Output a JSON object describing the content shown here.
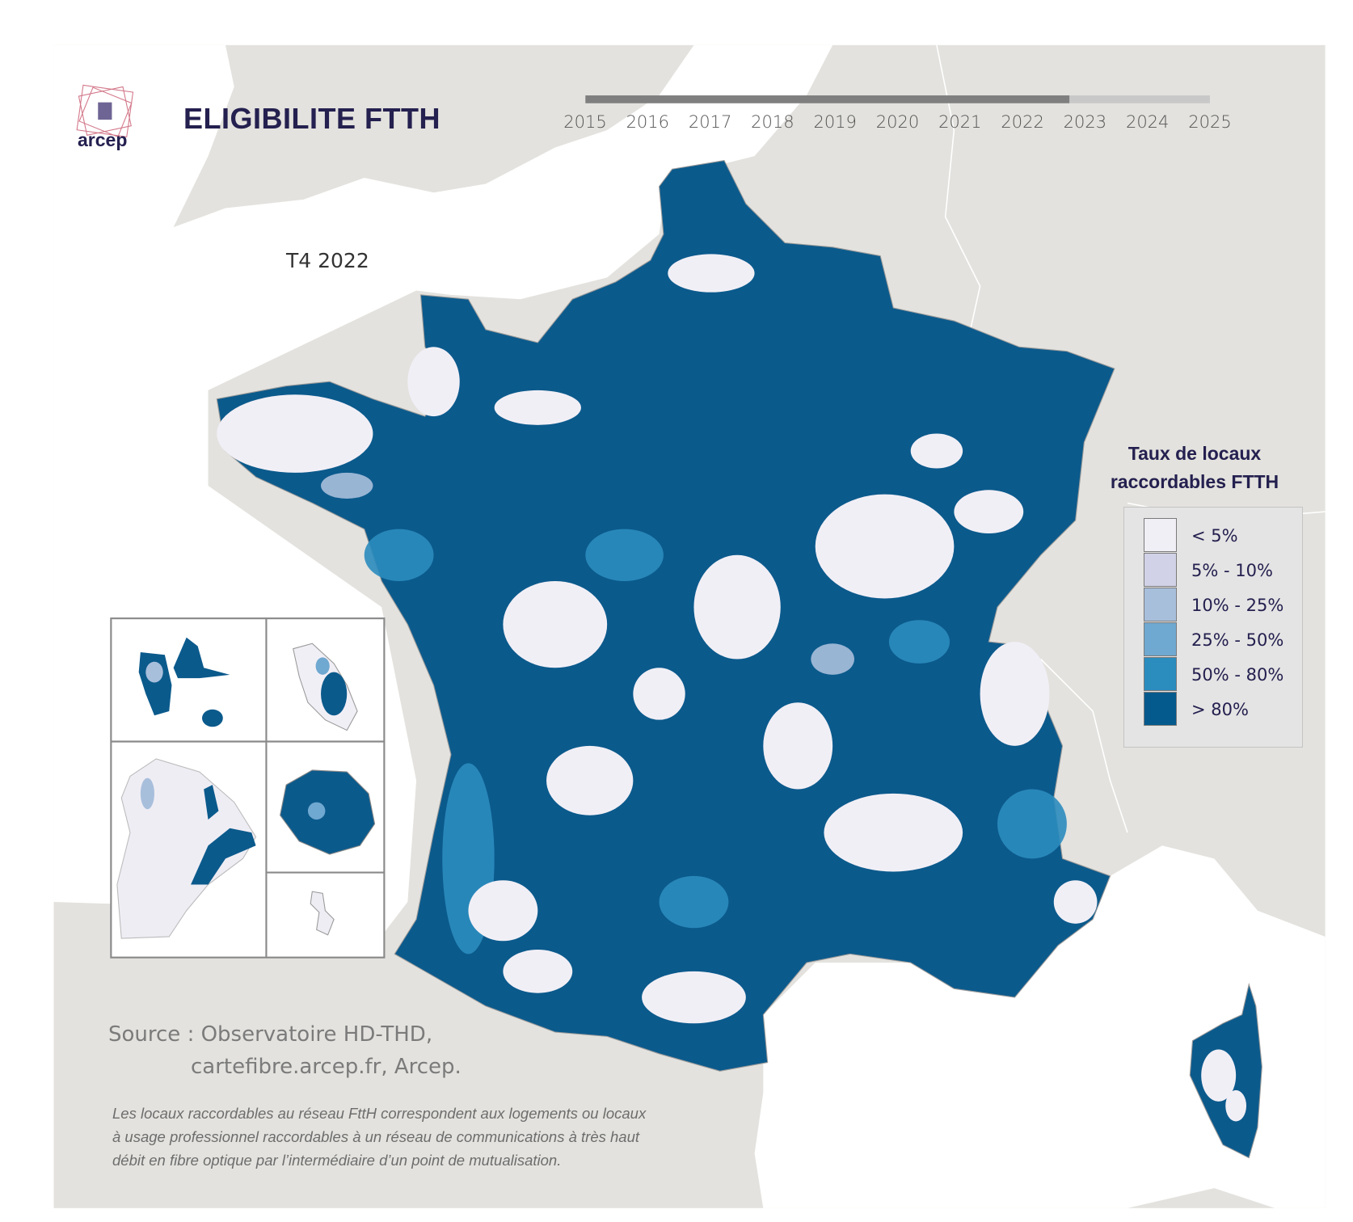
{
  "header": {
    "logo_text": "arcep",
    "title": "ELIGIBILITE FTTH"
  },
  "timeline": {
    "years": [
      "2015",
      "2016",
      "2017",
      "2018",
      "2019",
      "2020",
      "2021",
      "2022",
      "2023",
      "2024",
      "2025"
    ],
    "current_position_year": 2022.75
  },
  "period_label": "T4 2022",
  "legend": {
    "title_line1": "Taux de locaux",
    "title_line2": "raccordables FTTH",
    "items": [
      {
        "label": "< 5%",
        "color": "#f1eff6"
      },
      {
        "label": "5% - 10%",
        "color": "#d1d2e7"
      },
      {
        "label": "10% - 25%",
        "color": "#a8bfdc"
      },
      {
        "label": "25% - 50%",
        "color": "#6fa8d0"
      },
      {
        "label": "50% - 80%",
        "color": "#2b8cbe"
      },
      {
        "label": "> 80%",
        "color": "#045a8d"
      }
    ]
  },
  "source": {
    "line1": "Source : Observatoire HD-THD,",
    "line2": "cartefibre.arcep.fr, Arcep."
  },
  "note": {
    "line1": "Les locaux raccordables au réseau FttH correspondent aux logements ou locaux",
    "line2": "à usage professionnel raccordables à un réseau de communications à très haut",
    "line3": "débit en fibre optique par l’intermédiaire d’un point de mutualisation."
  },
  "colors": {
    "land": "#e3e2de",
    "sea": "#ffffff",
    "title": "#24204f"
  }
}
